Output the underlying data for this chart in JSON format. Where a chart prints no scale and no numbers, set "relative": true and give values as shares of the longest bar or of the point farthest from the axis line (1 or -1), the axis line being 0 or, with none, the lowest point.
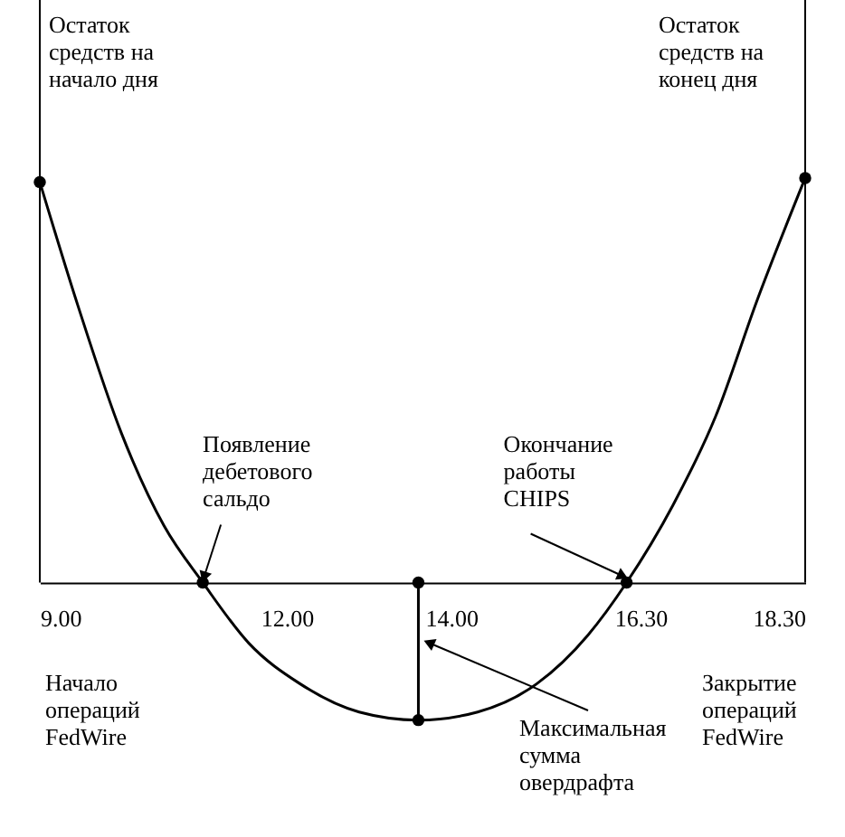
{
  "chart_data": {
    "type": "line",
    "relative": true,
    "tick_labels": "x",
    "xlim": [
      9,
      18.3
    ],
    "xticks": [
      {
        "value": 9,
        "label": "9.00"
      },
      {
        "value": 12,
        "label": "12.00"
      },
      {
        "value": 14,
        "label": "14.00"
      },
      {
        "value": 16.3,
        "label": "16.30"
      },
      {
        "value": 18.3,
        "label": "18.30"
      }
    ],
    "series": [
      {
        "color": "#000000",
        "x": [
          9.0,
          9.47,
          9.99,
          10.51,
          10.98,
          11.54,
          12.16,
          12.88,
          13.6,
          14.32,
          15.04,
          15.66,
          16.13,
          16.69,
          17.21,
          17.72,
          18.3
        ],
        "values": [
          0.99,
          0.68,
          0.37,
          0.14,
          0,
          -0.15,
          -0.25,
          -0.32,
          -0.34,
          -0.32,
          -0.25,
          -0.13,
          0,
          0.19,
          0.41,
          0.7,
          1.0
        ]
      },
      {
        "type": "scatter",
        "color": "#000000",
        "x": [
          9.0,
          10.98,
          13.6,
          13.6,
          16.13,
          18.3
        ],
        "values": [
          0.99,
          0,
          0,
          -0.34,
          0,
          1.0
        ]
      },
      {
        "type": "line",
        "color": "#000000",
        "x": [
          13.6,
          13.6
        ],
        "values": [
          0,
          -0.34
        ]
      }
    ],
    "ref_lines": [
      {
        "axis": "x",
        "value": 9
      },
      {
        "axis": "x",
        "value": 18.3
      }
    ],
    "annotations": [
      "Остаток средств на начало дня",
      "Остаток средств на конец дня",
      {
        "text": "Появление дебетового сальдо",
        "x": 10.98,
        "y": 0
      },
      {
        "text": "Окончание работы CHIPS",
        "x": 16.13,
        "y": 0
      },
      "Максимальная сумма овердрафта",
      "Начало операций FedWire",
      "Закрытие операций FedWire"
    ]
  }
}
